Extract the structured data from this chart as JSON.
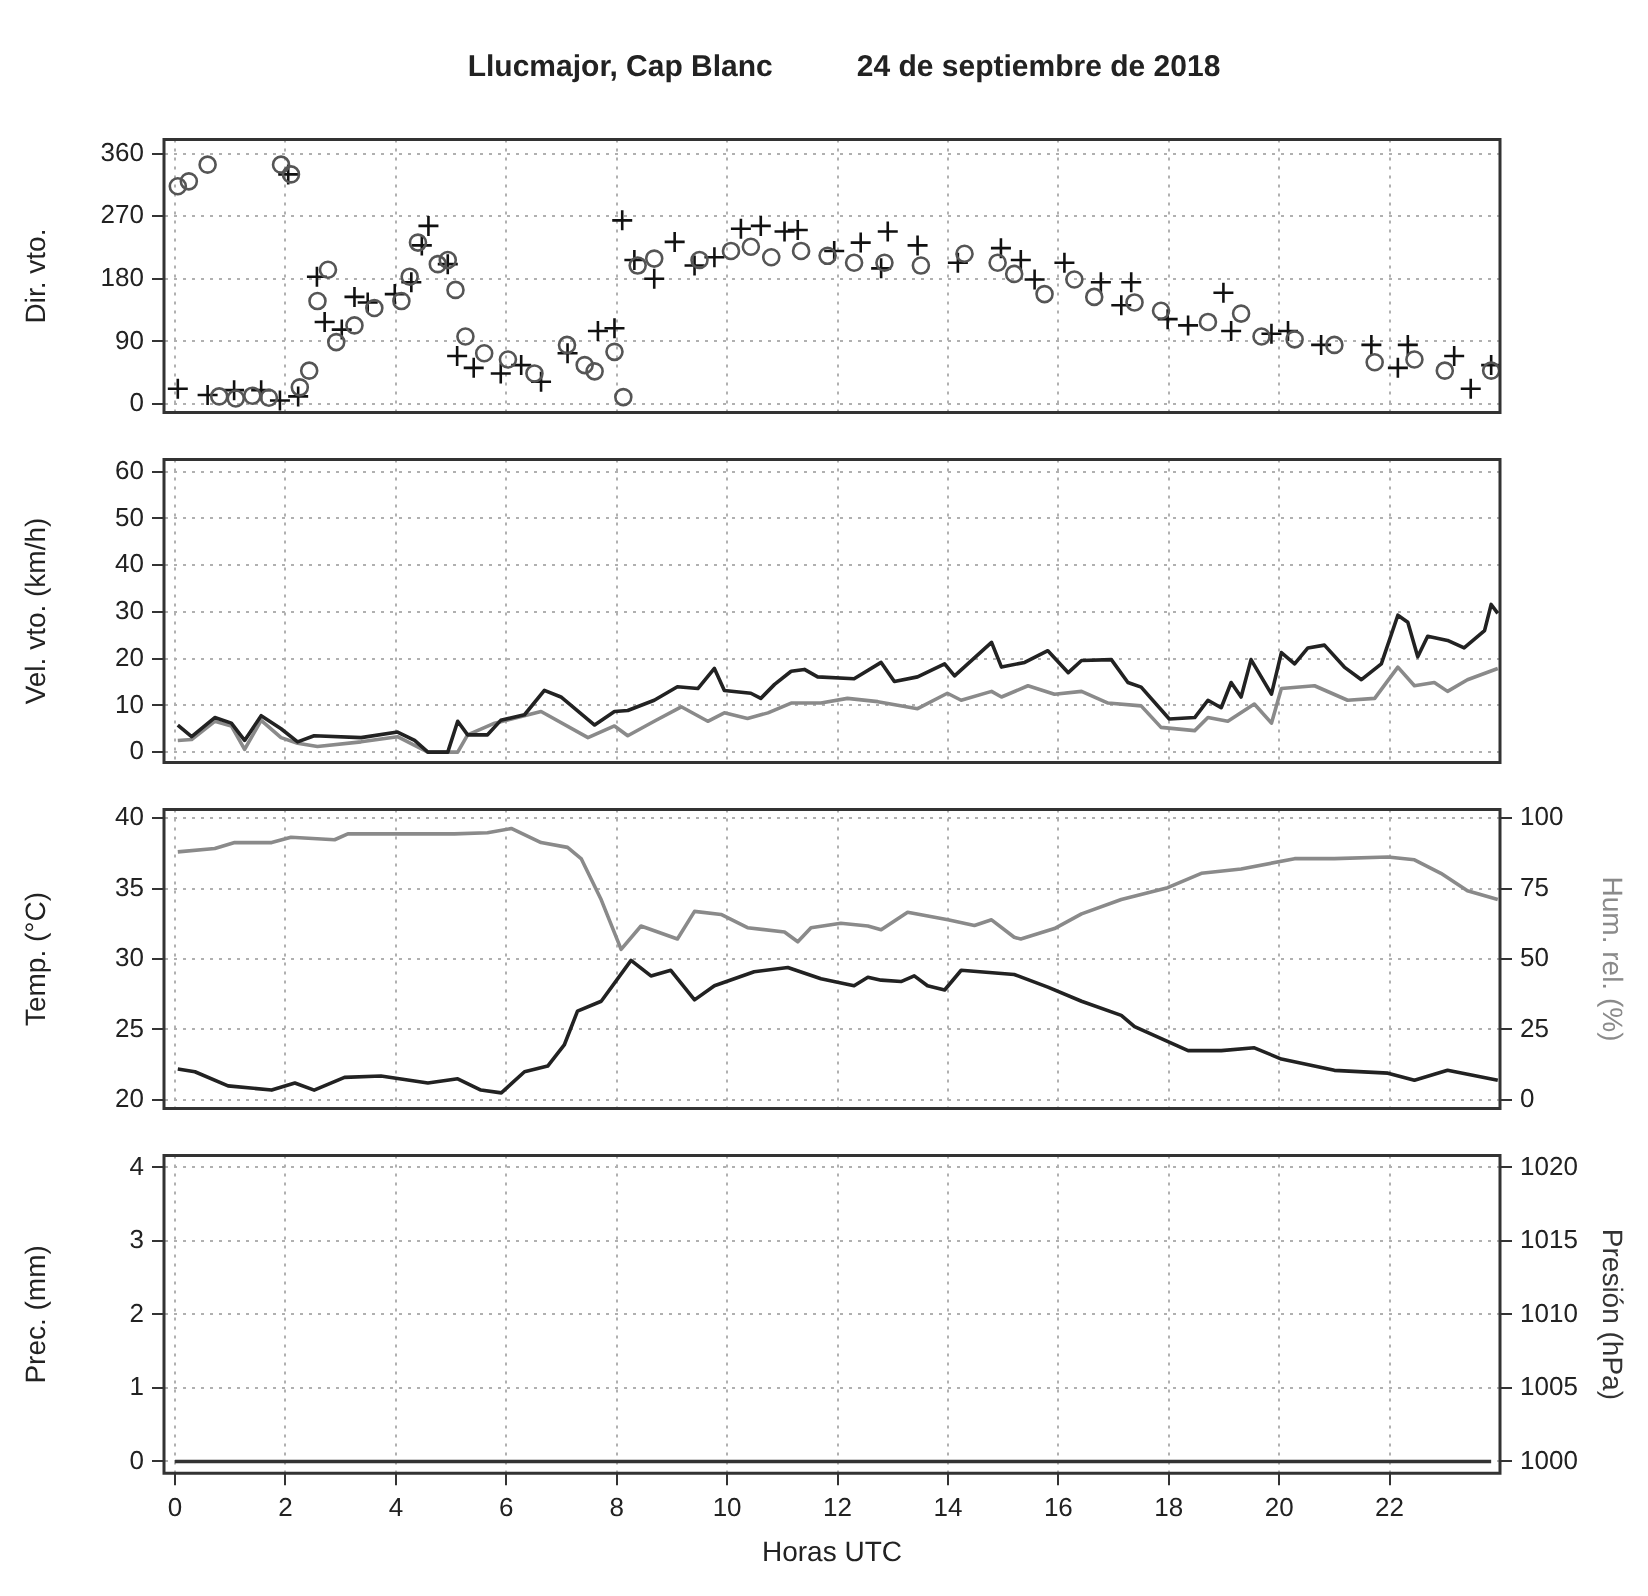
{
  "chart_data": [
    {
      "type": "scatter",
      "title": "Llucmajor, Cap Blanc",
      "subtitle": "24 de septiembre de 2018",
      "ylabel": "Dir. vto.",
      "xlim": [
        -0.2,
        24
      ],
      "xticks": [
        0,
        2,
        4,
        6,
        8,
        10,
        12,
        14,
        16,
        18,
        20,
        22
      ],
      "ylim": [
        -12,
        380
      ],
      "yticks": [
        0,
        90,
        180,
        270,
        360
      ],
      "grid": true,
      "legend": false,
      "tick_labels": "y",
      "series": [
        {
          "color": "#555555",
          "marker": "circle",
          "x": [
            0.05,
            0.25,
            0.59,
            0.8,
            1.1,
            1.4,
            1.7,
            1.92,
            2.1,
            2.26,
            2.43,
            2.58,
            2.77,
            2.92,
            3.25,
            3.61,
            4.1,
            4.25,
            4.4,
            4.76,
            4.94,
            5.08,
            5.26,
            5.6,
            6.03,
            6.51,
            7.1,
            7.42,
            7.6,
            7.96,
            8.12,
            8.38,
            8.68,
            9.5,
            10.07,
            10.43,
            10.8,
            11.34,
            11.82,
            12.3,
            12.85,
            13.51,
            14.3,
            14.9,
            15.2,
            15.75,
            16.29,
            16.65,
            17.38,
            17.86,
            18.71,
            19.31,
            19.68,
            20.28,
            21,
            21.73,
            22.45,
            23,
            23.84
          ],
          "values": [
            313,
            320,
            344,
            11,
            8,
            12,
            9,
            344,
            330,
            24,
            48,
            148,
            193,
            89,
            113,
            138,
            148,
            183,
            232,
            201,
            207,
            164,
            97,
            73,
            64,
            44,
            85,
            56,
            47,
            75,
            10,
            199,
            209,
            207,
            220,
            226,
            211,
            220,
            213,
            203,
            203,
            199,
            216,
            203,
            187,
            158,
            179,
            154,
            146,
            134,
            118,
            130,
            97,
            93,
            85,
            60,
            64,
            48,
            48
          ]
        },
        {
          "color": "#111111",
          "marker": "cross",
          "x": [
            0.05,
            0.59,
            1.07,
            1.56,
            1.9,
            2.05,
            2.23,
            2.57,
            2.71,
            3.02,
            3.25,
            3.49,
            3.98,
            4.28,
            4.47,
            4.59,
            4.94,
            5.11,
            5.41,
            5.9,
            6.27,
            6.63,
            7.11,
            7.66,
            7.96,
            8.1,
            8.32,
            8.68,
            9.05,
            9.41,
            9.77,
            10.25,
            10.61,
            11.04,
            11.28,
            11.94,
            12.42,
            12.79,
            12.91,
            13.45,
            14.18,
            14.96,
            15.32,
            15.57,
            16.11,
            16.77,
            17.14,
            17.32,
            17.98,
            18.35,
            18.99,
            19.13,
            19.86,
            20.16,
            20.76,
            21.67,
            22.15,
            22.33,
            23.17,
            23.47,
            23.84
          ],
          "values": [
            22,
            13,
            20,
            20,
            5,
            330,
            11,
            183,
            118,
            107,
            154,
            146,
            158,
            175,
            228,
            256,
            201,
            69,
            52,
            44,
            56,
            32,
            73,
            105,
            109,
            264,
            207,
            180,
            233,
            199,
            211,
            252,
            256,
            248,
            250,
            220,
            232,
            195,
            248,
            228,
            203,
            224,
            207,
            179,
            203,
            175,
            142,
            175,
            122,
            113,
            160,
            105,
            101,
            105,
            85,
            85,
            52,
            85,
            69,
            22,
            56
          ]
        }
      ]
    },
    {
      "type": "line",
      "ylabel": "Vel. vto. (km/h)",
      "xlim": [
        -0.2,
        24
      ],
      "xticks": [
        0,
        2,
        4,
        6,
        8,
        10,
        12,
        14,
        16,
        18,
        20,
        22
      ],
      "ylim": [
        -2.2,
        62.6
      ],
      "yticks": [
        0,
        10,
        20,
        30,
        40,
        50,
        60
      ],
      "grid": true,
      "legend": false,
      "tick_labels": "y",
      "series": [
        {
          "color": "#222222",
          "x": [
            0.05,
            0.3,
            0.72,
            1.02,
            1.26,
            1.56,
            1.92,
            2.22,
            2.52,
            3.37,
            4.03,
            4.34,
            4.58,
            4.94,
            5.12,
            5.3,
            5.66,
            5.9,
            6.33,
            6.69,
            6.99,
            7.6,
            7.96,
            8.2,
            8.68,
            9.1,
            9.47,
            9.77,
            9.95,
            10.43,
            10.61,
            10.86,
            11.16,
            11.4,
            11.64,
            12.3,
            12.79,
            13.03,
            13.45,
            13.94,
            14.12,
            14.79,
            14.97,
            15.39,
            15.81,
            16.18,
            16.42,
            16.96,
            17.26,
            17.5,
            18.01,
            18.47,
            18.71,
            18.95,
            19.13,
            19.31,
            19.49,
            19.86,
            20.04,
            20.28,
            20.52,
            20.82,
            21.18,
            21.49,
            21.85,
            22.15,
            22.33,
            22.51,
            22.69,
            23.05,
            23.35,
            23.72,
            23.84,
            23.96
          ],
          "values": [
            5.8,
            3.3,
            7.4,
            6.2,
            2.5,
            7.8,
            5,
            2.2,
            3.5,
            3.1,
            4.3,
            2.5,
            0,
            0,
            6.6,
            3.7,
            3.7,
            6.8,
            8,
            13.2,
            11.8,
            5.8,
            8.7,
            8.9,
            11.1,
            14,
            13.6,
            17.9,
            13.2,
            12.6,
            11.5,
            14.5,
            17.3,
            17.7,
            16.1,
            15.7,
            19.2,
            15.1,
            16.1,
            18.9,
            16.3,
            23.5,
            18.2,
            19.2,
            21.7,
            17,
            19.6,
            19.8,
            14.9,
            13.9,
            7.1,
            7.4,
            11.1,
            9.5,
            14.9,
            11.8,
            19.8,
            12.4,
            21.3,
            18.9,
            22.3,
            22.9,
            18.2,
            15.5,
            18.9,
            29.3,
            27.8,
            20.4,
            24.8,
            23.9,
            22.3,
            26,
            31.6,
            29.7
          ]
        },
        {
          "color": "#8a8a8a",
          "x": [
            0.05,
            0.3,
            0.72,
            1.02,
            1.26,
            1.56,
            1.92,
            2.22,
            2.58,
            3.37,
            4.03,
            4.58,
            5.12,
            5.3,
            5.79,
            6.63,
            7.48,
            7.96,
            8.2,
            8.68,
            9.17,
            9.65,
            9.95,
            10.37,
            10.74,
            11.16,
            11.7,
            12.18,
            12.73,
            13.45,
            13.99,
            14.24,
            14.79,
            14.97,
            15.45,
            15.93,
            16.42,
            16.9,
            17.5,
            17.86,
            18.47,
            18.71,
            19.07,
            19.55,
            19.86,
            20.04,
            20.64,
            21.24,
            21.73,
            22.15,
            22.45,
            22.81,
            23.05,
            23.41,
            23.96
          ],
          "values": [
            2.5,
            2.7,
            6.6,
            5.6,
            0.6,
            6.8,
            3.1,
            1.9,
            1.2,
            2.2,
            3.3,
            0,
            0,
            3.7,
            6.2,
            8.7,
            3.1,
            5.6,
            3.5,
            6.6,
            9.7,
            6.6,
            8.4,
            7.2,
            8.4,
            10.5,
            10.5,
            11.5,
            10.8,
            9.3,
            12.6,
            11.1,
            13,
            11.8,
            14.2,
            12.4,
            13,
            10.5,
            9.9,
            5.3,
            4.6,
            7.4,
            6.6,
            10.3,
            6.2,
            13.6,
            14.2,
            11.1,
            11.5,
            18.2,
            14.2,
            14.9,
            13,
            15.5,
            17.9
          ]
        }
      ]
    },
    {
      "type": "line",
      "ylabel": "Temp. (°C)",
      "y2label": "Hum. rel. (%)",
      "xlim": [
        -0.2,
        24
      ],
      "xticks": [
        0,
        2,
        4,
        6,
        8,
        10,
        12,
        14,
        16,
        18,
        20,
        22
      ],
      "ylim": [
        19.4,
        40.6
      ],
      "yticks": [
        20,
        25,
        30,
        35,
        40
      ],
      "y2lim": [
        -3,
        103
      ],
      "y2ticks": [
        0,
        25,
        50,
        75,
        100
      ],
      "grid": true,
      "legend": false,
      "tick_labels": "y",
      "series": [
        {
          "color": "#222222",
          "x": [
            0.05,
            0.36,
            0.96,
            1.75,
            2.17,
            2.52,
            3.07,
            3.73,
            4.58,
            5.12,
            5.54,
            5.91,
            6.33,
            6.75,
            7.05,
            7.29,
            7.72,
            8.26,
            8.62,
            8.98,
            9.41,
            9.77,
            10.49,
            11.1,
            11.7,
            12.3,
            12.55,
            12.79,
            13.15,
            13.39,
            13.63,
            13.94,
            14.24,
            15.2,
            15.81,
            16.42,
            17.14,
            17.38,
            18.35,
            18.95,
            19.55,
            20.04,
            21,
            21.97,
            22.45,
            23.05,
            23.96
          ],
          "values": [
            22.2,
            22,
            21,
            20.7,
            21.2,
            20.7,
            21.6,
            21.7,
            21.2,
            21.5,
            20.7,
            20.5,
            22,
            22.4,
            23.9,
            26.3,
            27,
            29.9,
            28.8,
            29.2,
            27.1,
            28.1,
            29.1,
            29.4,
            28.6,
            28.1,
            28.7,
            28.5,
            28.4,
            28.8,
            28.1,
            27.8,
            29.2,
            28.9,
            28,
            27,
            26,
            25.2,
            23.5,
            23.5,
            23.7,
            22.9,
            22.1,
            21.9,
            21.4,
            22.1,
            21.4
          ]
        },
        {
          "color": "#8a8a8a",
          "axis": "y2",
          "x": [
            0.05,
            0.72,
            1.08,
            1.75,
            2.1,
            2.89,
            3.13,
            5.06,
            5.66,
            6.09,
            6.63,
            7.11,
            7.36,
            7.72,
            8.08,
            8.44,
            9.1,
            9.41,
            9.89,
            10.37,
            11.04,
            11.28,
            11.52,
            12.06,
            12.55,
            12.79,
            13.27,
            14,
            14.48,
            14.79,
            15.2,
            15.32,
            15.93,
            16.42,
            17.14,
            17.98,
            18.59,
            19.31,
            20.28,
            21,
            21.97,
            22.45,
            22.93,
            23.41,
            23.96
          ],
          "values": [
            88,
            89.2,
            91.3,
            91.3,
            93.2,
            92.3,
            94.4,
            94.4,
            94.8,
            96.3,
            91.3,
            89.6,
            85.5,
            71,
            53.4,
            61.7,
            57.1,
            66.9,
            65.8,
            61.1,
            59.6,
            56.1,
            61.1,
            62.7,
            61.7,
            60.4,
            66.6,
            63.9,
            61.9,
            63.9,
            57.7,
            57.1,
            60.8,
            66,
            71.1,
            75.3,
            80.4,
            81.9,
            85.6,
            85.6,
            86.2,
            85.2,
            80.4,
            74.2,
            71.1
          ]
        }
      ]
    },
    {
      "type": "line",
      "ylabel": "Prec. (mm)",
      "y2label": "Presión (hPa)",
      "xlabel": "Horas UTC",
      "xlim": [
        -0.2,
        24
      ],
      "xticks": [
        0,
        2,
        4,
        6,
        8,
        10,
        12,
        14,
        16,
        18,
        20,
        22
      ],
      "ylim": [
        -0.16,
        4.16
      ],
      "yticks": [
        0,
        1,
        2,
        3,
        4
      ],
      "y2lim": [
        999.2,
        1020.8
      ],
      "y2ticks": [
        1000,
        1005,
        1010,
        1015,
        1020
      ],
      "grid": true,
      "legend": false,
      "series": [
        {
          "color": "#333333",
          "x": [
            0,
            23.84
          ],
          "values": [
            0,
            0
          ]
        }
      ]
    }
  ]
}
